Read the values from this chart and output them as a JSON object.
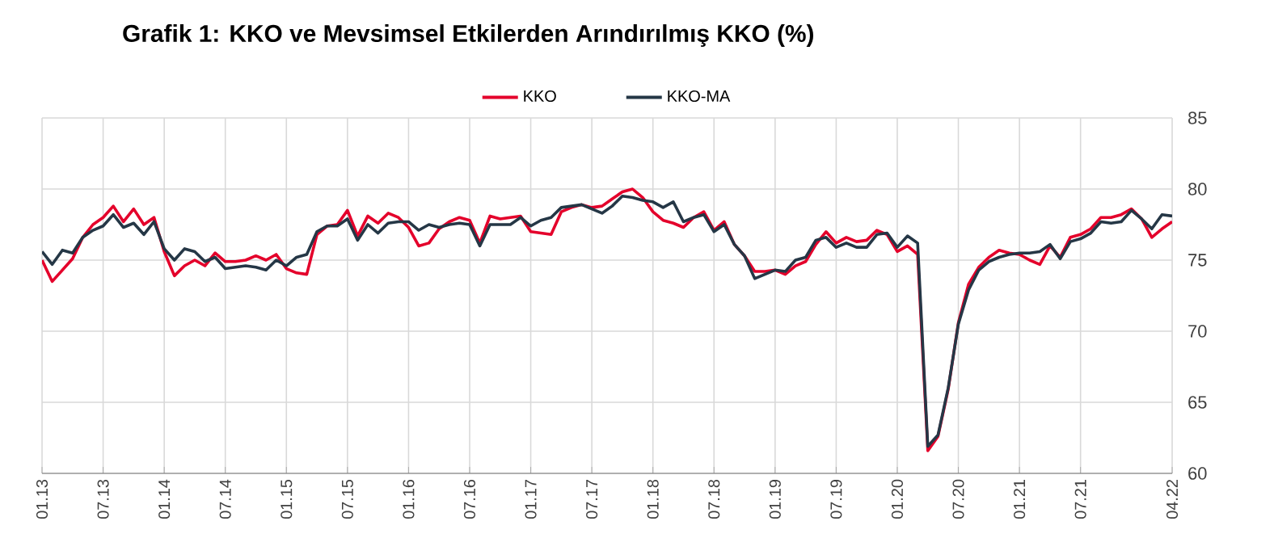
{
  "chart_data": {
    "type": "line",
    "title": "Grafik 1: KKO ve Mevsimsel Etkilerden Arındırılmış KKO (%)",
    "categories": [
      "01.13",
      null,
      null,
      null,
      null,
      null,
      "07.13",
      null,
      null,
      null,
      null,
      null,
      "01.14",
      null,
      null,
      null,
      null,
      null,
      "07.14",
      null,
      null,
      null,
      null,
      null,
      "01.15",
      null,
      null,
      null,
      null,
      null,
      "07.15",
      null,
      null,
      null,
      null,
      null,
      "01.16",
      null,
      null,
      null,
      null,
      null,
      "07.16",
      null,
      null,
      null,
      null,
      null,
      "01.17",
      null,
      null,
      null,
      null,
      null,
      "07.17",
      null,
      null,
      null,
      null,
      null,
      "01.18",
      null,
      null,
      null,
      null,
      null,
      "07.18",
      null,
      null,
      null,
      null,
      null,
      "01.19",
      null,
      null,
      null,
      null,
      null,
      "07.19",
      null,
      null,
      null,
      null,
      null,
      "01.20",
      null,
      null,
      null,
      null,
      null,
      "07.20",
      null,
      null,
      null,
      null,
      null,
      "01.21",
      null,
      null,
      null,
      null,
      null,
      "07.21",
      null,
      null,
      null,
      null,
      null,
      null,
      null,
      null,
      "04.22"
    ],
    "series": [
      {
        "name": "KKO",
        "color": "#e4002b",
        "values": [
          75.0,
          73.5,
          74.3,
          75.1,
          76.6,
          77.5,
          78.0,
          78.8,
          77.7,
          78.6,
          77.5,
          78.0,
          75.6,
          73.9,
          74.6,
          75.0,
          74.6,
          75.5,
          74.9,
          74.9,
          75.0,
          75.3,
          75.0,
          75.4,
          74.4,
          74.1,
          74.0,
          76.8,
          77.4,
          77.5,
          78.5,
          76.7,
          78.1,
          77.6,
          78.3,
          78.0,
          77.3,
          76.0,
          76.2,
          77.2,
          77.7,
          78.0,
          77.8,
          76.2,
          78.1,
          77.9,
          78.0,
          78.1,
          77.0,
          76.9,
          76.8,
          78.4,
          78.7,
          78.9,
          78.7,
          78.8,
          79.3,
          79.8,
          80.0,
          79.4,
          78.4,
          77.8,
          77.6,
          77.3,
          78.0,
          78.4,
          77.1,
          77.7,
          76.1,
          75.3,
          74.2,
          74.2,
          74.3,
          74.0,
          74.6,
          74.9,
          76.1,
          77.0,
          76.2,
          76.6,
          76.3,
          76.4,
          77.1,
          76.8,
          75.6,
          76.0,
          75.4,
          61.6,
          62.6,
          65.9,
          70.6,
          73.3,
          74.5,
          75.2,
          75.7,
          75.5,
          75.4,
          75.0,
          74.7,
          76.0,
          75.2,
          76.6,
          76.8,
          77.2,
          78.0,
          78.0,
          78.2,
          78.6,
          77.9,
          76.6,
          77.2,
          77.7
        ]
      },
      {
        "name": "KKO-MA",
        "color": "#253746",
        "values": [
          75.6,
          74.7,
          75.7,
          75.5,
          76.6,
          77.1,
          77.4,
          78.2,
          77.3,
          77.6,
          76.8,
          77.7,
          75.8,
          75.0,
          75.8,
          75.6,
          74.9,
          75.2,
          74.4,
          74.5,
          74.6,
          74.5,
          74.3,
          75.0,
          74.6,
          75.2,
          75.4,
          77.0,
          77.4,
          77.4,
          77.9,
          76.4,
          77.5,
          76.9,
          77.6,
          77.7,
          77.7,
          77.1,
          77.5,
          77.3,
          77.5,
          77.6,
          77.5,
          76.0,
          77.5,
          77.5,
          77.5,
          78.0,
          77.4,
          77.8,
          78.0,
          78.7,
          78.8,
          78.9,
          78.6,
          78.3,
          78.8,
          79.5,
          79.4,
          79.2,
          79.1,
          78.7,
          79.1,
          77.7,
          78.0,
          78.2,
          77.0,
          77.5,
          76.1,
          75.3,
          73.7,
          74.0,
          74.3,
          74.2,
          75.0,
          75.2,
          76.4,
          76.6,
          75.9,
          76.2,
          75.9,
          75.9,
          76.8,
          76.9,
          75.9,
          76.7,
          76.2,
          61.9,
          62.7,
          66.0,
          70.5,
          72.9,
          74.3,
          74.9,
          75.2,
          75.4,
          75.5,
          75.5,
          75.6,
          76.1,
          75.1,
          76.3,
          76.5,
          76.9,
          77.7,
          77.6,
          77.7,
          78.5,
          77.9,
          77.2,
          78.2,
          78.1
        ]
      }
    ],
    "ylim": [
      60,
      85
    ],
    "yticks": [
      60,
      65,
      70,
      75,
      80,
      85
    ],
    "grid": true,
    "legend": "top",
    "marker": "none",
    "line_style": "solid"
  }
}
